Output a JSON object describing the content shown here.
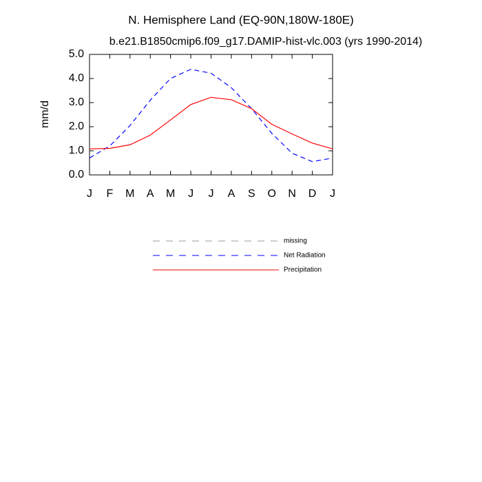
{
  "chart_data": {
    "type": "line",
    "title": "N. Hemisphere Land (EQ-90N,180W-180E)",
    "subtitle": "b.e21.B1850cmip6.f09_g17.DAMIP-hist-vlc.003 (yrs 1990-2014)",
    "y_label": "mm/d",
    "categories": [
      "J",
      "F",
      "M",
      "A",
      "M",
      "J",
      "J",
      "A",
      "S",
      "O",
      "N",
      "D",
      "J"
    ],
    "ylim": [
      0,
      5
    ],
    "yticks": [
      {
        "value": 0,
        "label": "0.0"
      },
      {
        "value": 1,
        "label": "1.0"
      },
      {
        "value": 2,
        "label": "2.0"
      },
      {
        "value": 3,
        "label": "3.0"
      },
      {
        "value": 4,
        "label": "4.0"
      },
      {
        "value": 5,
        "label": "5.0"
      }
    ],
    "series": [
      {
        "name": "missing",
        "color": "#999999",
        "dashed": true,
        "values": [
          null,
          null,
          null,
          null,
          null,
          null,
          null,
          null,
          null,
          null,
          null,
          null,
          null
        ]
      },
      {
        "name": "Net Radiation",
        "color": "#0000ff",
        "dashed": true,
        "values": [
          0.7,
          1.2,
          2.05,
          3.1,
          4.0,
          4.38,
          4.22,
          3.62,
          2.75,
          1.72,
          0.9,
          0.55,
          0.7
        ]
      },
      {
        "name": "Precipitation",
        "color": "#ff0000",
        "dashed": false,
        "values": [
          1.08,
          1.1,
          1.25,
          1.65,
          2.28,
          2.92,
          3.22,
          3.12,
          2.75,
          2.1,
          1.7,
          1.32,
          1.08
        ]
      }
    ]
  }
}
